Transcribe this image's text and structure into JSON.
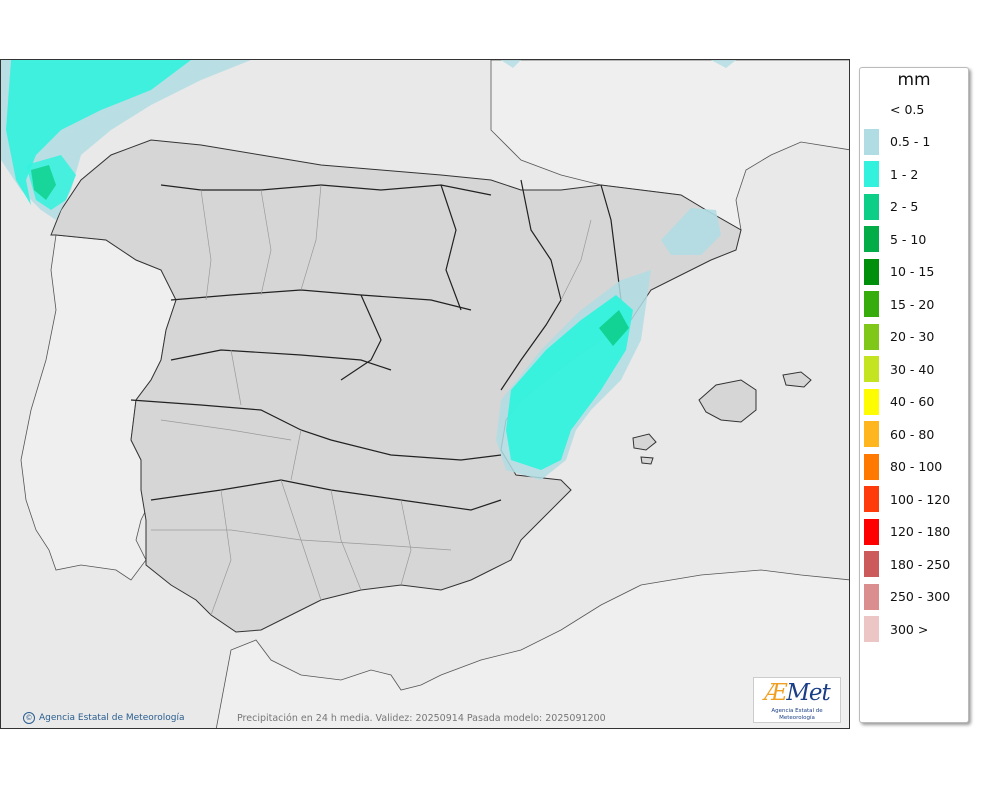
{
  "legend": {
    "unit": "mm",
    "items": [
      {
        "label": "< 0.5",
        "color": "#ffffff"
      },
      {
        "label": "0.5 - 1",
        "color": "#b0dde3"
      },
      {
        "label": "1 - 2",
        "color": "#33f2dd"
      },
      {
        "label": "2 - 5",
        "color": "#0cce87"
      },
      {
        "label": "5 - 10",
        "color": "#02ac46"
      },
      {
        "label": "10 - 15",
        "color": "#008f0a"
      },
      {
        "label": "15 - 20",
        "color": "#36ad0d"
      },
      {
        "label": "20 - 30",
        "color": "#7fc81a"
      },
      {
        "label": "30 - 40",
        "color": "#c4e320"
      },
      {
        "label": "40 - 60",
        "color": "#fdfc00"
      },
      {
        "label": "60 - 80",
        "color": "#ffb51d"
      },
      {
        "label": "80 - 100",
        "color": "#ff7800"
      },
      {
        "label": "100 - 120",
        "color": "#ff3b0c"
      },
      {
        "label": "120 - 180",
        "color": "#ff0000"
      },
      {
        "label": "180 - 250",
        "color": "#cc5a5a"
      },
      {
        "label": "250 - 300",
        "color": "#da8e8e"
      },
      {
        "label": "300 >",
        "color": "#ecc5c5"
      }
    ]
  },
  "footer": {
    "credit": "Agencia Estatal de Meteorología",
    "caption": "Precipitación en 24 h media. Validez: 20250914 Pasada modelo: 2025091200"
  },
  "logo": {
    "word_a": "Æ",
    "word_rest": "Met",
    "subtitle": "Agencia Estatal de Meteorología"
  },
  "colors": {
    "sea": "#e9e9e9",
    "land": "#d7d7d7",
    "border": "#333333"
  }
}
